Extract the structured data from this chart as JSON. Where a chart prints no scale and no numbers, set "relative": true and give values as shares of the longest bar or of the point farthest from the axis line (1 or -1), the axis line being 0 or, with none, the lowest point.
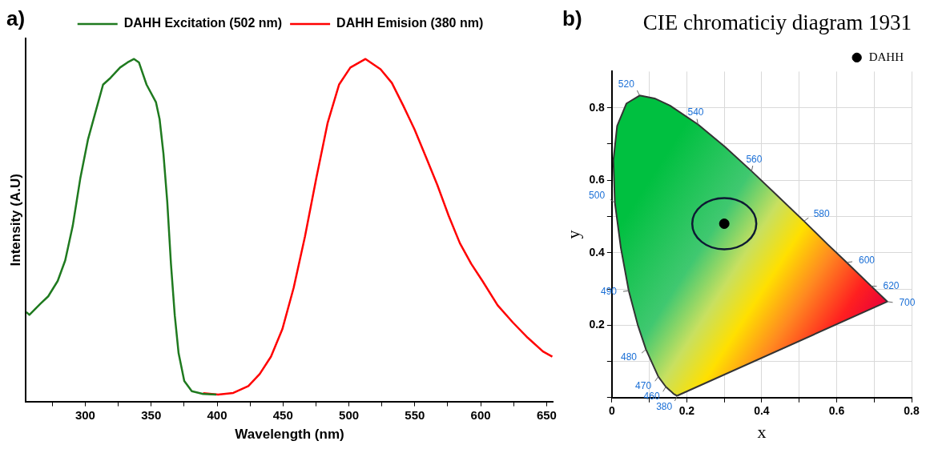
{
  "chart_data": [
    {
      "type": "line",
      "annotations": [
        "a)"
      ],
      "xlabel": "Wavelength (nm)",
      "ylabel": "Intensity (A.U)",
      "relative": true,
      "xlim": [
        255,
        655
      ],
      "xticks": [
        {
          "value": 275,
          "label": null
        },
        300,
        {
          "value": 325,
          "label": null
        },
        350,
        {
          "value": 375,
          "label": null
        },
        400,
        {
          "value": 425,
          "label": null
        },
        450,
        {
          "value": 475,
          "label": null
        },
        500,
        {
          "value": 525,
          "label": null
        },
        550,
        {
          "value": 575,
          "label": null
        },
        600,
        {
          "value": 625,
          "label": null
        },
        650
      ],
      "legend": "top",
      "grid": false,
      "marker": "none",
      "line_style": "solid",
      "series": [
        {
          "name": "DAHH Excitation (502 nm)",
          "color": "#1f7a1f",
          "x": [
            255.3,
            257.6,
            266.2,
            271.9,
            279.1,
            284.8,
            290.5,
            296.3,
            302,
            307.7,
            313.5,
            319.2,
            326.4,
            332.1,
            337,
            340.7,
            346.5,
            353.6,
            356.4,
            359.3,
            362.2,
            365,
            367.9,
            370.8,
            375.1,
            380.8,
            389.4,
            399.4
          ],
          "values": [
            0.261,
            0.253,
            0.286,
            0.307,
            0.352,
            0.412,
            0.513,
            0.653,
            0.764,
            0.844,
            0.925,
            0.945,
            0.975,
            0.99,
            1,
            0.99,
            0.925,
            0.874,
            0.824,
            0.724,
            0.583,
            0.402,
            0.251,
            0.141,
            0.06,
            0.03,
            0.022,
            0.02
          ]
        },
        {
          "name": "DAHH Emision (380 nm)",
          "color": "#ff0000",
          "x": [
            389.4,
            400.8,
            412.3,
            423.7,
            432.3,
            440.9,
            449.5,
            458.1,
            466.7,
            475.3,
            483.9,
            492.5,
            501.1,
            512.6,
            524,
            532.6,
            541.2,
            549.8,
            558.4,
            567,
            575.6,
            584.2,
            592.8,
            601.3,
            612.8,
            624.3,
            635.7,
            647.2,
            654.3
          ],
          "values": [
            0.024,
            0.02,
            0.025,
            0.045,
            0.08,
            0.131,
            0.211,
            0.332,
            0.482,
            0.653,
            0.814,
            0.925,
            0.975,
            1,
            0.97,
            0.93,
            0.864,
            0.794,
            0.714,
            0.633,
            0.543,
            0.462,
            0.402,
            0.352,
            0.281,
            0.231,
            0.186,
            0.146,
            0.131
          ]
        }
      ]
    },
    {
      "type": "area",
      "title": "CIE chromaticiy diagram 1931",
      "xlabel": "x",
      "ylabel": "y",
      "xlim": [
        0,
        0.8
      ],
      "ylim": [
        0,
        0.9
      ],
      "xticks": [
        0,
        {
          "value": 0.1,
          "label": null
        },
        0.2,
        {
          "value": 0.3,
          "label": null
        },
        0.4,
        {
          "value": 0.5,
          "label": null
        },
        0.6,
        {
          "value": 0.7,
          "label": null
        },
        0.8
      ],
      "yticks": [
        {
          "value": 0,
          "label": null
        },
        {
          "value": 0.1,
          "label": null
        },
        0.2,
        {
          "value": 0.3,
          "label": null
        },
        0.4,
        {
          "value": 0.5,
          "label": null
        },
        0.6,
        {
          "value": 0.7,
          "label": null
        },
        0.8
      ],
      "grid": true,
      "legend": "top right",
      "annotations": [
        "b)",
        {
          "text": "380",
          "x": 0.174,
          "y": 0.005
        },
        {
          "text": "460",
          "x": 0.144,
          "y": 0.03
        },
        {
          "text": "470",
          "x": 0.124,
          "y": 0.058
        },
        {
          "text": "480",
          "x": 0.091,
          "y": 0.133
        },
        {
          "text": "490",
          "x": 0.045,
          "y": 0.295
        },
        {
          "text": "500",
          "x": 0.008,
          "y": 0.538
        },
        {
          "text": "520",
          "x": 0.074,
          "y": 0.834
        },
        {
          "text": "540",
          "x": 0.23,
          "y": 0.754
        },
        {
          "text": "560",
          "x": 0.373,
          "y": 0.625
        },
        {
          "text": "580",
          "x": 0.513,
          "y": 0.487
        },
        {
          "text": "600",
          "x": 0.627,
          "y": 0.373
        },
        {
          "text": "620",
          "x": 0.692,
          "y": 0.308
        },
        {
          "text": "700",
          "x": 0.735,
          "y": 0.265
        }
      ],
      "series": [
        {
          "color": "#333333",
          "marker": "none",
          "x": [
            0.174,
            0.164,
            0.157,
            0.144,
            0.124,
            0.091,
            0.069,
            0.045,
            0.024,
            0.008,
            0.004,
            0.014,
            0.039,
            0.074,
            0.114,
            0.155,
            0.23,
            0.302,
            0.373,
            0.444,
            0.513,
            0.575,
            0.627,
            0.692,
            0.735,
            0.174
          ],
          "values": [
            0.005,
            0.011,
            0.018,
            0.03,
            0.058,
            0.133,
            0.201,
            0.295,
            0.413,
            0.538,
            0.655,
            0.75,
            0.812,
            0.834,
            0.826,
            0.806,
            0.754,
            0.692,
            0.625,
            0.555,
            0.487,
            0.424,
            0.373,
            0.308,
            0.265,
            0.005
          ]
        },
        {
          "type": "scatter",
          "name": "DAHH",
          "color": "#000000",
          "marker": "circle",
          "x": [
            0.3
          ],
          "values": [
            0.48
          ]
        }
      ]
    }
  ]
}
